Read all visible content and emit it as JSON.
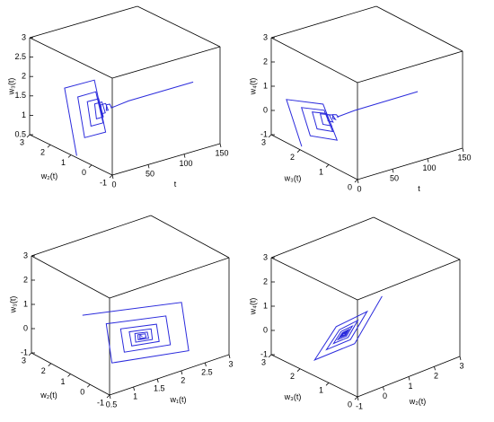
{
  "chart_data": [
    {
      "type": "line3d",
      "xlabel": "t",
      "ylabel": "w₂(t)",
      "zlabel": "w₃(t)",
      "xlim": [
        0,
        150
      ],
      "ylim": [
        -1,
        3
      ],
      "zlim": [
        0.5,
        3
      ],
      "xticks": [
        0,
        50,
        100,
        150
      ],
      "yticks": [
        -1,
        0,
        1,
        2,
        3
      ],
      "zticks": [
        0.5,
        1,
        1.5,
        2,
        2.5,
        3
      ],
      "series": [
        {
          "color": "#2b2bdc",
          "x": [
            0,
            1.5,
            3,
            4.5,
            6,
            7.5,
            9,
            10.5,
            12,
            13.5,
            15,
            16.5,
            18,
            19.5,
            21,
            22.5,
            24,
            25.5,
            27,
            28.5,
            30,
            31.5,
            33,
            34.5,
            36,
            60,
            150
          ],
          "y": [
            0.72,
            1.36,
            -0.03,
            -0.52,
            0.55,
            0.93,
            0.11,
            -0.19,
            0.45,
            0.68,
            0.18,
            0.01,
            0.39,
            0.53,
            0.23,
            0.12,
            0.35,
            0.44,
            0.26,
            0.19,
            0.33,
            0.38,
            0.27,
            0.24,
            0.32,
            0.3,
            0.3
          ],
          "z": [
            0.55,
            2.12,
            2.68,
            1.46,
            1.03,
            1.97,
            2.31,
            1.58,
            1.32,
            1.88,
            2.08,
            1.65,
            1.49,
            1.83,
            1.95,
            1.69,
            1.6,
            1.8,
            1.87,
            1.71,
            1.66,
            1.78,
            1.82,
            1.73,
            1.69,
            1.75,
            1.75
          ]
        }
      ]
    },
    {
      "type": "line3d",
      "xlabel": "t",
      "ylabel": "w₃(t)",
      "zlabel": "w₄(t)",
      "xlim": [
        0,
        150
      ],
      "ylim": [
        0,
        3
      ],
      "zlim": [
        -1,
        3
      ],
      "xticks": [
        0,
        50,
        100,
        150
      ],
      "yticks": [
        0,
        1,
        2,
        3
      ],
      "zticks": [
        -1,
        0,
        1,
        2,
        3
      ],
      "series": [
        {
          "color": "#2b2bdc",
          "x": [
            0,
            1.5,
            3,
            4.5,
            6,
            7.5,
            9,
            10.5,
            12,
            13.5,
            15,
            16.5,
            18,
            19.5,
            21,
            22.5,
            24,
            25.5,
            27,
            28.5,
            30,
            31.5,
            33,
            34.5,
            36,
            60,
            150
          ],
          "y": [
            1.94,
            2.51,
            1.27,
            0.82,
            1.79,
            2.13,
            1.38,
            1.12,
            1.7,
            1.9,
            1.45,
            1.3,
            1.64,
            1.77,
            1.5,
            1.4,
            1.61,
            1.68,
            1.53,
            1.46,
            1.59,
            1.63,
            1.54,
            1.5,
            1.57,
            1.56,
            1.56
          ],
          "z": [
            -0.83,
            0.74,
            1.3,
            0.08,
            -0.35,
            0.59,
            0.93,
            0.2,
            -0.06,
            0.5,
            0.7,
            0.27,
            0.11,
            0.45,
            0.57,
            0.31,
            0.22,
            0.42,
            0.49,
            0.33,
            0.28,
            0.4,
            0.44,
            0.35,
            0.31,
            0.37,
            0.37
          ]
        }
      ]
    },
    {
      "type": "line3d",
      "xlabel": "w₁(t)",
      "ylabel": "w₂(t)",
      "zlabel": "w₃(t)",
      "xlim": [
        0.5,
        3
      ],
      "ylim": [
        -1,
        3
      ],
      "zlim": [
        -1,
        3
      ],
      "xticks": [
        0.5,
        1,
        1.5,
        2,
        2.5,
        3
      ],
      "yticks": [
        -1,
        0,
        1,
        2,
        3
      ],
      "zticks": [
        -1,
        0,
        1,
        2,
        3
      ],
      "series": [
        {
          "color": "#2b2bdc",
          "x": [
            0.84,
            2.75,
            2.54,
            1.06,
            1.22,
            2.37,
            2.25,
            1.36,
            1.45,
            2.14,
            2.07,
            1.54,
            1.59,
            2.01,
            1.96,
            1.64,
            1.68,
            1.92,
            1.9,
            1.7,
            1.73,
            1.87,
            1.86,
            1.74,
            1.76,
            1.8
          ],
          "y": [
            1.22,
            0.82,
            -0.06,
            0.25,
            0.93,
            0.69,
            0.17,
            0.35,
            0.76,
            0.61,
            0.3,
            0.41,
            0.66,
            0.57,
            0.38,
            0.45,
            0.59,
            0.54,
            0.43,
            0.47,
            0.56,
            0.52,
            0.46,
            0.48,
            0.53,
            0.5
          ],
          "z": [
            1.1,
            0.53,
            -0.94,
            -0.59,
            0.62,
            0.28,
            -0.6,
            -0.39,
            0.33,
            0.13,
            -0.4,
            -0.28,
            0.16,
            0.04,
            -0.28,
            -0.21,
            0.06,
            -0.02,
            -0.21,
            -0.16,
            -0.01,
            -0.05,
            -0.16,
            -0.14,
            -0.04,
            -0.1
          ]
        }
      ]
    },
    {
      "type": "line3d",
      "xlabel": "w₂(t)",
      "ylabel": "w₃(t)",
      "zlabel": "w₄(t)",
      "xlim": [
        -1,
        3
      ],
      "ylim": [
        0,
        3
      ],
      "zlim": [
        -1,
        3
      ],
      "xticks": [
        -1,
        0,
        1,
        2,
        3
      ],
      "yticks": [
        0,
        1,
        2,
        3
      ],
      "zticks": [
        -1,
        0,
        1,
        2,
        3
      ],
      "series": [
        {
          "color": "#2b2bdc",
          "x": [
            1.58,
            0.08,
            -0.34,
            0.83,
            1.15,
            0.25,
            0,
            0.7,
            0.89,
            0.35,
            0.2,
            0.62,
            0.73,
            0.41,
            0.32,
            0.57,
            0.64,
            0.45,
            0.39,
            0.54,
            0.58,
            0.47,
            0.44,
            0.53,
            0.55,
            0.5
          ],
          "y": [
            1.44,
            1.06,
            2.08,
            2.37,
            1.58,
            1.36,
            1.97,
            2.14,
            1.67,
            1.53,
            1.9,
            2.01,
            1.72,
            1.64,
            1.86,
            1.92,
            1.75,
            1.7,
            1.84,
            1.87,
            1.77,
            1.74,
            1.82,
            1.84,
            1.78,
            1.8
          ],
          "z": [
            1.24,
            0.13,
            -0.96,
            -0.24,
            0.71,
            0.05,
            -0.61,
            -0.18,
            0.4,
            0,
            -0.4,
            -0.14,
            0.2,
            -0.03,
            -0.27,
            -0.12,
            0.09,
            -0.05,
            -0.19,
            -0.1,
            0.02,
            -0.06,
            -0.15,
            -0.09,
            -0.02,
            -0.08
          ]
        }
      ]
    }
  ]
}
